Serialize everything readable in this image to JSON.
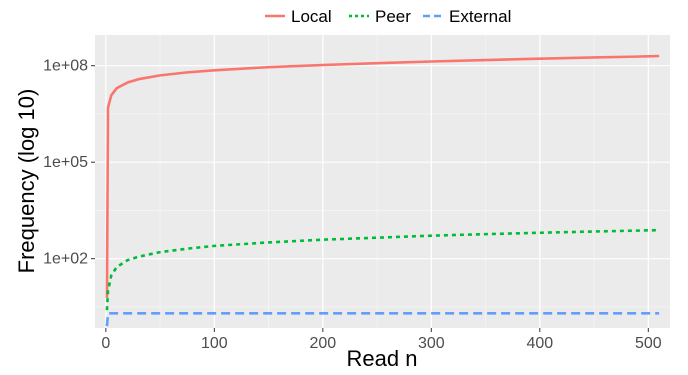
{
  "chart_data": {
    "type": "line",
    "title": "",
    "xlabel": "Read n",
    "ylabel": "Frequency (log 10)",
    "y_scale": "log10",
    "xlim": [
      -10,
      520
    ],
    "ylim": [
      0.7,
      900000000
    ],
    "x_ticks": [
      0,
      100,
      200,
      300,
      400,
      500
    ],
    "x_tick_labels": [
      "0",
      "100",
      "200",
      "300",
      "400",
      "500"
    ],
    "y_ticks": [
      100,
      100000,
      100000000
    ],
    "y_tick_labels": [
      "1e+02",
      "1e+05",
      "1e+08"
    ],
    "grid": true,
    "legend_position": "top",
    "series": [
      {
        "name": "Local",
        "color": "#F8766D",
        "linestyle": "solid",
        "points": [
          [
            1,
            6
          ],
          [
            2,
            5000000
          ],
          [
            5,
            12000000
          ],
          [
            10,
            20000000
          ],
          [
            20,
            30000000
          ],
          [
            30,
            38000000
          ],
          [
            50,
            50000000
          ],
          [
            75,
            62000000
          ],
          [
            100,
            72000000
          ],
          [
            150,
            90000000
          ],
          [
            200,
            105000000
          ],
          [
            250,
            120000000
          ],
          [
            300,
            135000000
          ],
          [
            350,
            150000000
          ],
          [
            400,
            165000000
          ],
          [
            450,
            180000000
          ],
          [
            500,
            195000000
          ],
          [
            510,
            200000000
          ]
        ]
      },
      {
        "name": "Peer",
        "color": "#00BA38",
        "linestyle": "dotted",
        "points": [
          [
            1,
            2.5
          ],
          [
            2,
            10
          ],
          [
            5,
            30
          ],
          [
            10,
            55
          ],
          [
            20,
            90
          ],
          [
            30,
            115
          ],
          [
            50,
            160
          ],
          [
            75,
            205
          ],
          [
            100,
            250
          ],
          [
            150,
            320
          ],
          [
            200,
            390
          ],
          [
            250,
            450
          ],
          [
            300,
            520
          ],
          [
            350,
            580
          ],
          [
            400,
            640
          ],
          [
            450,
            700
          ],
          [
            500,
            760
          ],
          [
            510,
            770
          ]
        ]
      },
      {
        "name": "External",
        "color": "#619CFF",
        "linestyle": "dashed",
        "points": [
          [
            1,
            0.8
          ],
          [
            2,
            2
          ],
          [
            510,
            2
          ]
        ]
      }
    ]
  }
}
